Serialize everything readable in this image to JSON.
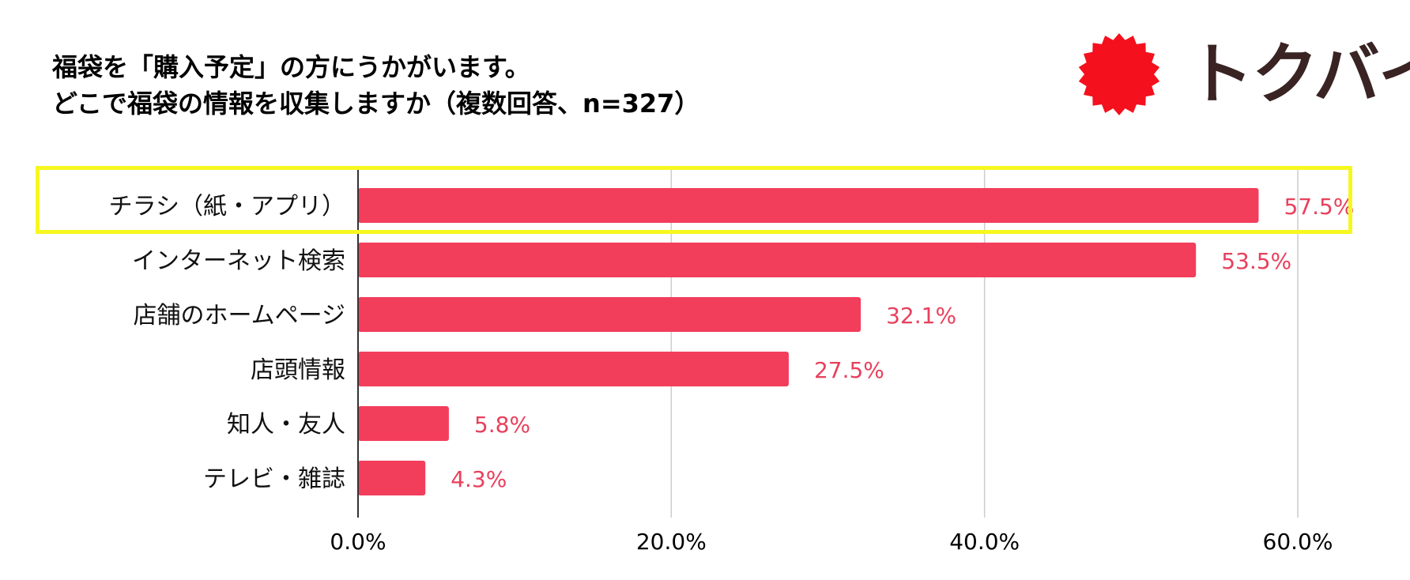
{
  "title": {
    "line1": "福袋を「購入予定」の方にうかがいます。",
    "line2": "どこで福袋の情報を収集しますか（複数回答、n=327）"
  },
  "brand": {
    "name": "トクバイ",
    "logo_color": "#f5101e",
    "text_color": "#3a2323"
  },
  "colors": {
    "bar": "#f23e5b",
    "label": "#e8405c",
    "highlight": "#f7f720"
  },
  "chart_data": {
    "type": "bar",
    "orientation": "horizontal",
    "categories": [
      "チラシ（紙・アプリ）",
      "インターネット検索",
      "店舗のホームページ",
      "店頭情報",
      "知人・友人",
      "テレビ・雑誌"
    ],
    "values": [
      57.5,
      53.5,
      32.1,
      27.5,
      5.8,
      4.3
    ],
    "value_labels": [
      "57.5%",
      "53.5%",
      "32.1%",
      "27.5%",
      "5.8%",
      "4.3%"
    ],
    "xlim": [
      0,
      60
    ],
    "ticks": [
      0,
      20,
      40,
      60
    ],
    "tick_labels": [
      "0.0%",
      "20.0%",
      "40.0%",
      "60.0%"
    ],
    "highlighted_category": "チラシ（紙・アプリ）",
    "grid": true
  }
}
